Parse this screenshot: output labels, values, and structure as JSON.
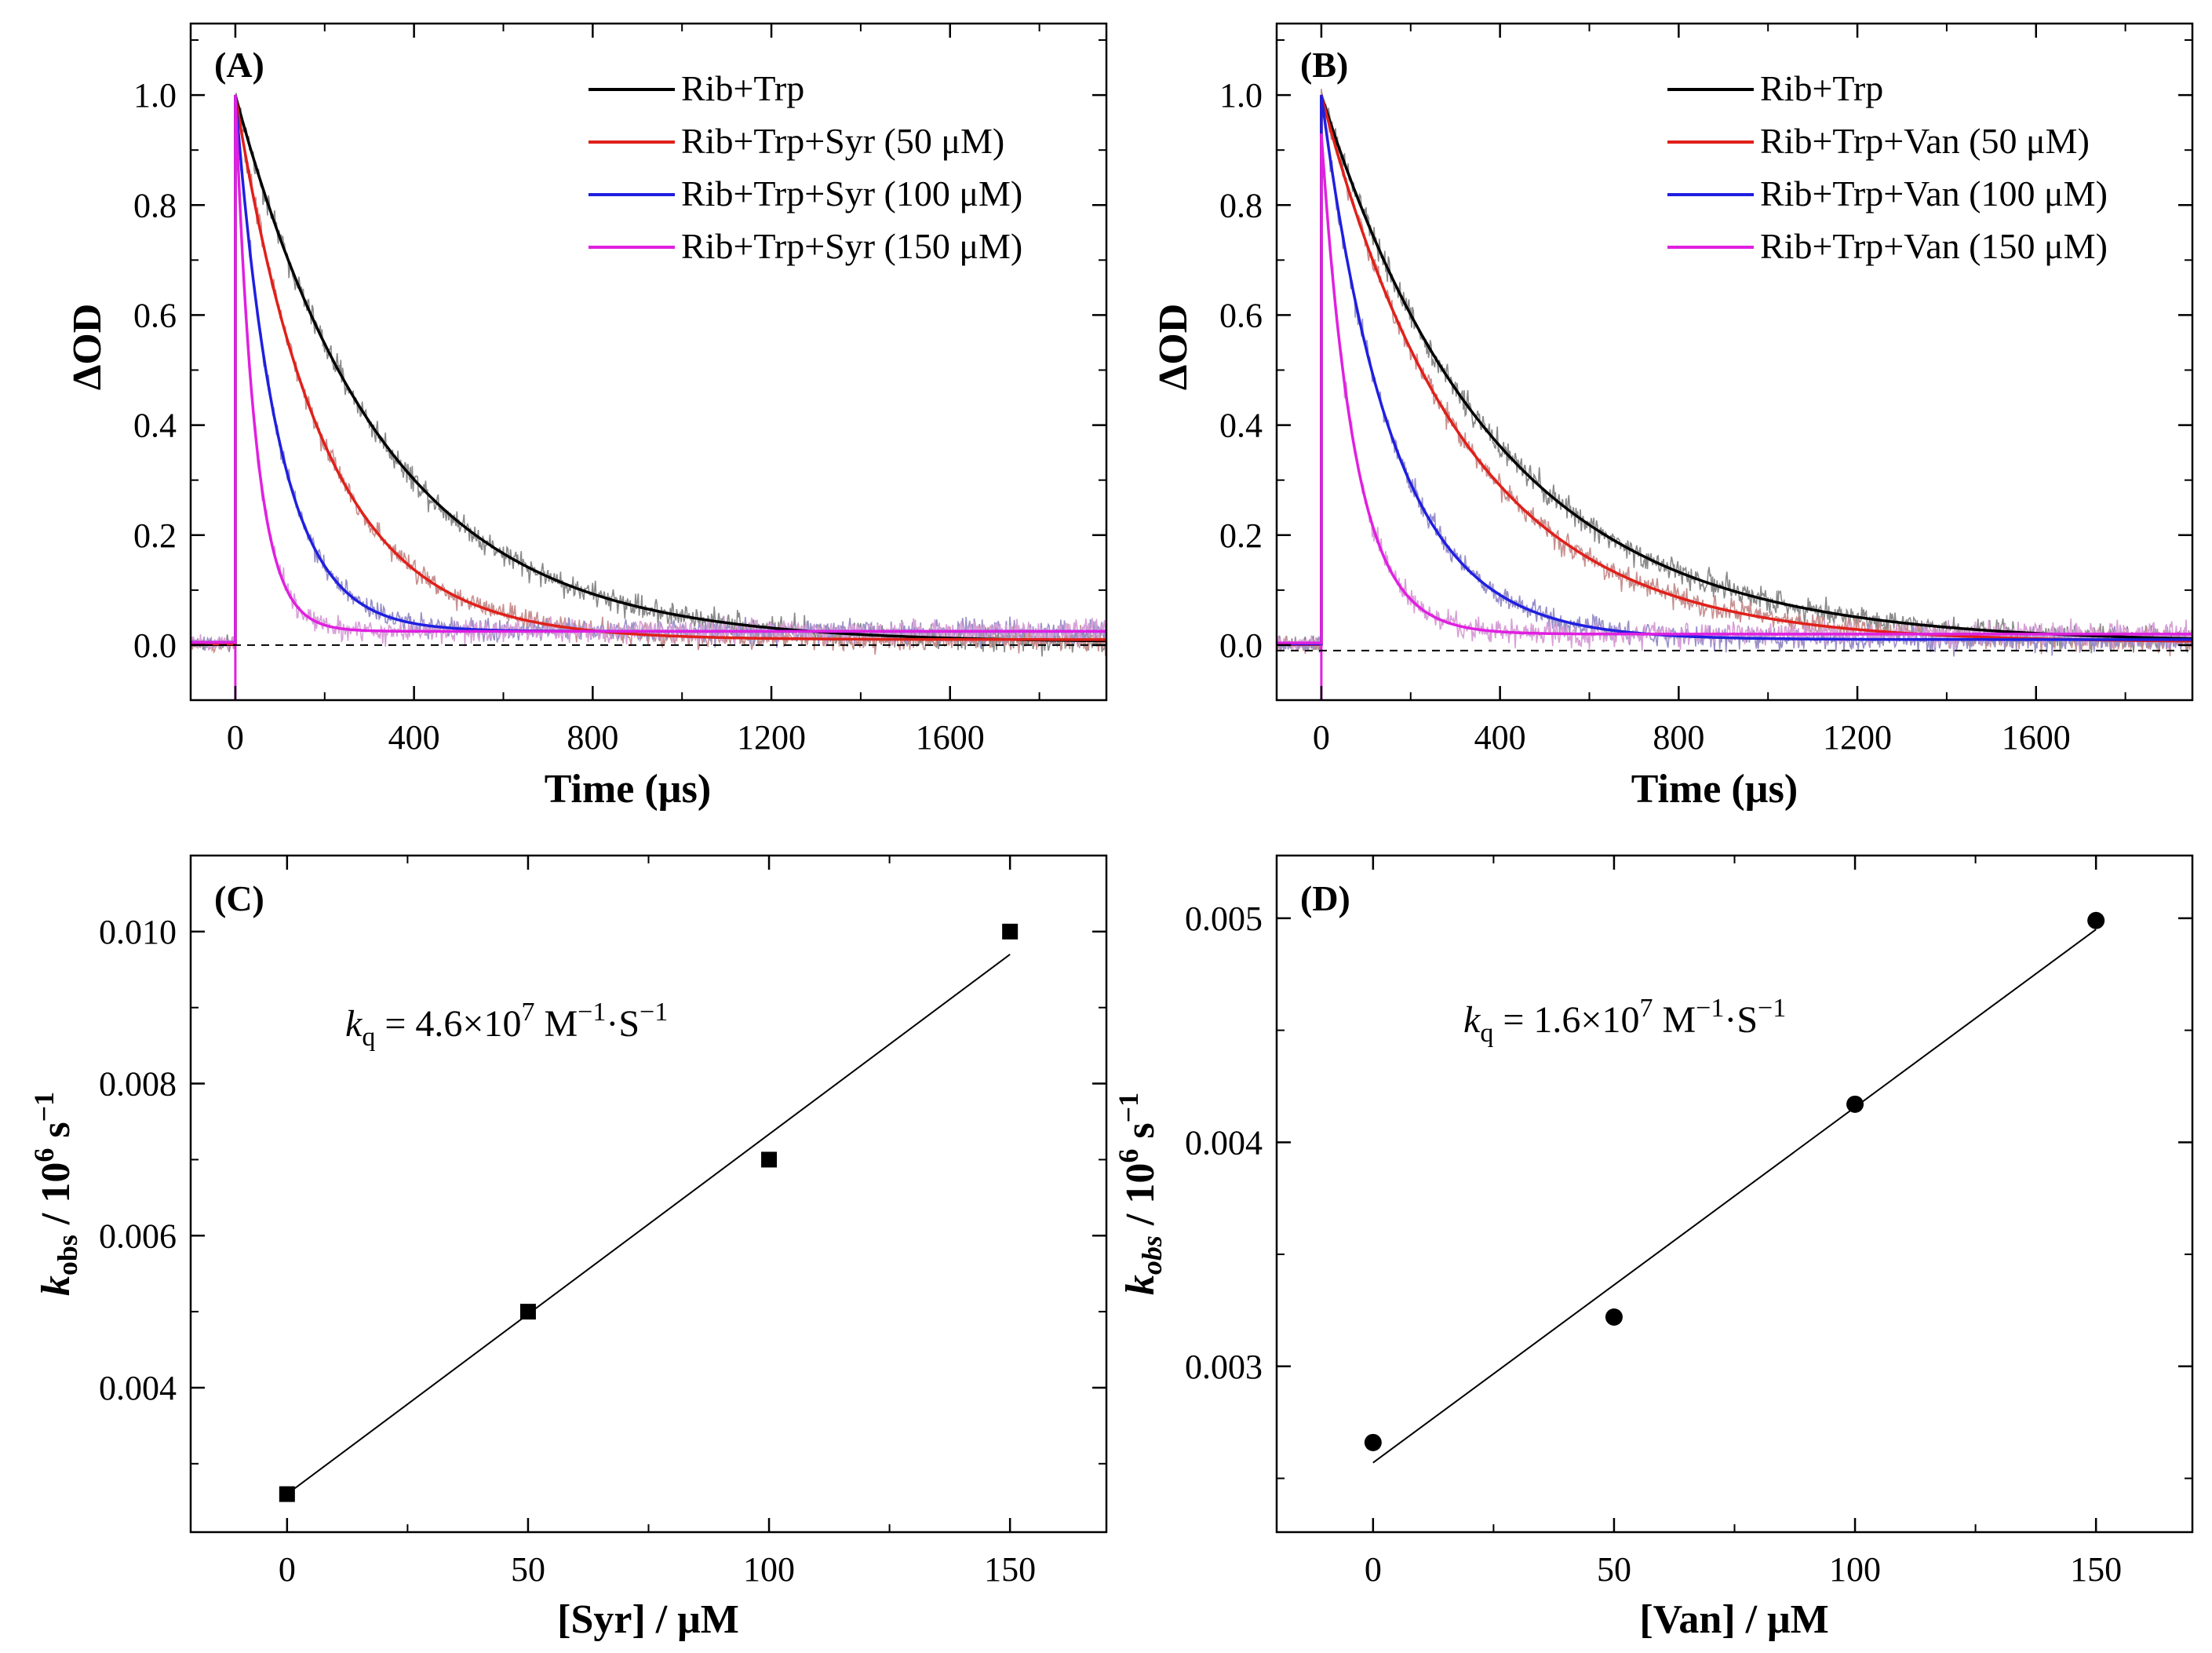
{
  "figure": {
    "title": ""
  },
  "chart_data": [
    {
      "id": "A",
      "type": "line",
      "panel_label": "(A)",
      "xlabel": "Time (µs)",
      "ylabel": "ΔOD",
      "xlim": [
        -100,
        1950
      ],
      "ylim": [
        -0.1,
        1.13
      ],
      "xticks": [
        0,
        400,
        800,
        1200,
        1600
      ],
      "yticks": [
        0.0,
        0.2,
        0.4,
        0.6,
        0.8,
        1.0
      ],
      "xtick_labels": [
        "0",
        "400",
        "800",
        "1200",
        "1600"
      ],
      "ytick_labels": [
        "0.0",
        "0.2",
        "0.4",
        "0.6",
        "0.8",
        "1.0"
      ],
      "baseline": 0.0,
      "legend_position": "top-right",
      "series": [
        {
          "name": "Rib+Trp",
          "color": "#000000",
          "tau": 330,
          "offset": 0.005,
          "peak": 1.0,
          "noise": 0.022
        },
        {
          "name": "Rib+Trp+Syr (50 μM)",
          "color": "#e0201a",
          "tau": 195,
          "offset": 0.01,
          "peak": 1.0,
          "noise": 0.02
        },
        {
          "name": "Rib+Trp+Syr (100 μM)",
          "color": "#1f1fe0",
          "tau": 95,
          "offset": 0.025,
          "peak": 1.0,
          "noise": 0.02
        },
        {
          "name": "Rib+Trp+Syr (150 μM)",
          "color": "#e020e0",
          "tau": 45,
          "offset": 0.025,
          "peak": 1.0,
          "noise": 0.02
        }
      ]
    },
    {
      "id": "B",
      "type": "line",
      "panel_label": "(B)",
      "xlabel": "Time (µs)",
      "ylabel": "ΔOD",
      "xlim": [
        -100,
        1950
      ],
      "ylim": [
        -0.1,
        1.13
      ],
      "xticks": [
        0,
        400,
        800,
        1200,
        1600
      ],
      "yticks": [
        0.0,
        0.2,
        0.4,
        0.6,
        0.8,
        1.0
      ],
      "xtick_labels": [
        "0",
        "400",
        "800",
        "1200",
        "1600"
      ],
      "ytick_labels": [
        "0.0",
        "0.2",
        "0.4",
        "0.6",
        "0.8",
        "1.0"
      ],
      "baseline": -0.01,
      "legend_position": "top-right",
      "series": [
        {
          "name": "Rib+Trp",
          "color": "#000000",
          "tau": 390,
          "offset": 0.005,
          "peak": 1.0,
          "noise": 0.022
        },
        {
          "name": "Rib+Trp+Van (50 μM)",
          "color": "#e0201a",
          "tau": 320,
          "offset": 0.005,
          "peak": 1.0,
          "noise": 0.02
        },
        {
          "name": "Rib+Trp+Van (100 μM)",
          "color": "#1f1fe0",
          "tau": 160,
          "offset": 0.01,
          "peak": 1.0,
          "noise": 0.02
        },
        {
          "name": "Rib+Trp+Van (150 μM)",
          "color": "#e020e0",
          "tau": 75,
          "offset": 0.02,
          "peak": 0.93,
          "noise": 0.02
        }
      ]
    },
    {
      "id": "C",
      "type": "scatter",
      "panel_label": "(C)",
      "xlabel": "[Syr] / μM",
      "ylabel_main": "k",
      "ylabel_sub": "obs",
      "ylabel_rest": " / 10",
      "ylabel_sup": "6",
      "ylabel_unit": " s",
      "ylabel_unit_sup": "−1",
      "xlim": [
        -20,
        170
      ],
      "ylim": [
        0.0021,
        0.011
      ],
      "xticks": [
        0,
        50,
        100,
        150
      ],
      "yticks": [
        0.004,
        0.006,
        0.008,
        0.01
      ],
      "xtick_labels": [
        "0",
        "50",
        "100",
        "150"
      ],
      "ytick_labels": [
        "0.004",
        "0.006",
        "0.008",
        "0.010"
      ],
      "marker": "square",
      "x": [
        0,
        50,
        100,
        150
      ],
      "y": [
        0.0026,
        0.005,
        0.007,
        0.01
      ],
      "fit": {
        "x": [
          0,
          150
        ],
        "y": [
          0.0026,
          0.0097
        ]
      },
      "annotation": {
        "k": "k",
        "sub": "q",
        "eq": " = 4.6×10",
        "exp": "7",
        "unit1": " M",
        "unit1_sup": "−1",
        "unit2": "·S",
        "unit2_sup": "−1"
      }
    },
    {
      "id": "D",
      "type": "scatter",
      "panel_label": "(D)",
      "xlabel": "[Van] / μM",
      "ylabel_main": "k",
      "ylabel_sub": "obs",
      "ylabel_rest": " / 10",
      "ylabel_sup": "6",
      "ylabel_unit": " s",
      "ylabel_unit_sup": "−1",
      "xlim": [
        -20,
        170
      ],
      "ylim": [
        0.00226,
        0.00528
      ],
      "xticks": [
        0,
        50,
        100,
        150
      ],
      "yticks": [
        0.003,
        0.004,
        0.005
      ],
      "xtick_labels": [
        "0",
        "50",
        "100",
        "150"
      ],
      "ytick_labels": [
        "0.003",
        "0.004",
        "0.005"
      ],
      "marker": "circle",
      "x": [
        0,
        50,
        100,
        150
      ],
      "y": [
        0.00266,
        0.00322,
        0.00417,
        0.00499
      ],
      "fit": {
        "x": [
          0,
          150
        ],
        "y": [
          0.00257,
          0.00495
        ]
      },
      "annotation": {
        "k": "k",
        "sub": "q",
        "eq": " = 1.6×10",
        "exp": "7",
        "unit1": " M",
        "unit1_sup": "−1",
        "unit2": "·S",
        "unit2_sup": "−1"
      }
    }
  ]
}
